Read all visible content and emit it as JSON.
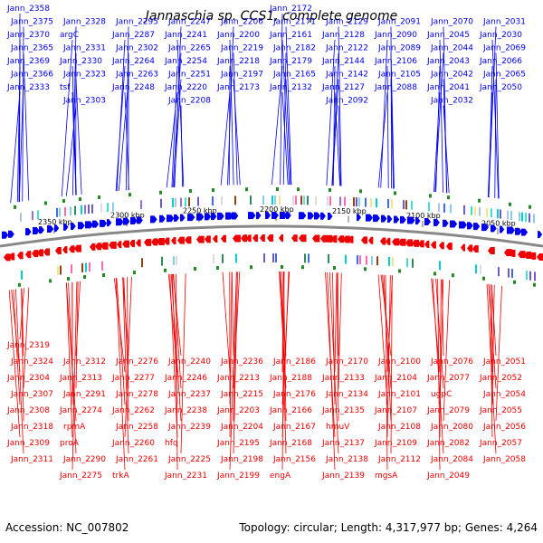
{
  "title": "Jannaschia sp. CCS1, complete genome",
  "footer": {
    "accession": "Accession: NC_007802",
    "summary": "Topology: circular; Length: 4,317,977 bp; Genes: 4,264"
  },
  "colors": {
    "forward": "#0000ee",
    "reverse": "#ee0000",
    "backbone": "#888888",
    "rna": "#228b22"
  },
  "scale_labels": [
    "2350 kbp",
    "2300 kbp",
    "2250 kbp",
    "2200 kbp",
    "2150 kbp",
    "2100 kbp",
    "2050 kbp"
  ],
  "top_labels": [
    "Jann_2358",
    "Jann_2375",
    "Jann_2370",
    "Jann_2365",
    "Jann_2369",
    "Jann_2366",
    "Jann_2333",
    "Jann_2328",
    "argC",
    "Jann_2331",
    "Jann_2330",
    "Jann_2323",
    "tsf",
    "Jann_2303",
    "Jann_2295",
    "Jann_2287",
    "Jann_2302",
    "Jann_2264",
    "Jann_2263",
    "Jann_2248",
    "Jann_2247",
    "Jann_2241",
    "Jann_2265",
    "Jann_2254",
    "Jann_2251",
    "Jann_2220",
    "Jann_2208",
    "Jann_2206",
    "Jann_2200",
    "Jann_2219",
    "Jann_2218",
    "Jann_2197",
    "Jann_2173",
    "Jann_2172",
    "Jann_2171",
    "Jann_2161",
    "Jann_2182",
    "Jann_2179",
    "Jann_2165",
    "Jann_2132",
    "Jann_2129",
    "Jann_2128",
    "Jann_2122",
    "Jann_2144",
    "Jann_2142",
    "Jann_2127",
    "Jann_2092",
    "Jann_2091",
    "Jann_2090",
    "Jann_2089",
    "Jann_2106",
    "Jann_2105",
    "Jann_2088",
    "Jann_2070",
    "Jann_2045",
    "Jann_2044",
    "Jann_2043",
    "Jann_2042",
    "Jann_2041",
    "Jann_2032",
    "Jann_2031",
    "Jann_2030",
    "Jann_2069",
    "Jann_2066",
    "Jann_2065",
    "Jann_2050"
  ],
  "bottom_labels": [
    "Jann_2319",
    "Jann_2324",
    "Jann_2304",
    "Jann_2307",
    "Jann_2308",
    "Jann_2318",
    "Jann_2309",
    "Jann_2311",
    "Jann_2312",
    "Jann_2313",
    "Jann_2291",
    "Jann_2274",
    "rpmA",
    "proA",
    "Jann_2290",
    "Jann_2275",
    "Jann_2276",
    "Jann_2277",
    "Jann_2278",
    "Jann_2262",
    "Jann_2258",
    "Jann_2260",
    "Jann_2261",
    "trkA",
    "Jann_2240",
    "Jann_2246",
    "Jann_2237",
    "Jann_2238",
    "Jann_2239",
    "hfq",
    "Jann_2225",
    "Jann_2231",
    "Jann_2236",
    "Jann_2213",
    "Jann_2215",
    "Jann_2203",
    "Jann_2204",
    "Jann_2195",
    "Jann_2198",
    "Jann_2199",
    "Jann_2186",
    "Jann_2188",
    "Jann_2176",
    "Jann_2166",
    "Jann_2167",
    "Jann_2168",
    "Jann_2156",
    "engA",
    "Jann_2170",
    "Jann_2133",
    "Jann_2134",
    "Jann_2135",
    "hmuV",
    "Jann_2137",
    "Jann_2138",
    "Jann_2139",
    "Jann_2100",
    "Jann_2104",
    "Jann_2101",
    "Jann_2107",
    "Jann_2108",
    "Jann_2109",
    "Jann_2112",
    "mgsA",
    "Jann_2076",
    "Jann_2077",
    "ugpC",
    "Jann_2079",
    "Jann_2080",
    "Jann_2082",
    "Jann_2084",
    "Jann_2049",
    "Jann_2051",
    "Jann_2052",
    "Jann_2054",
    "Jann_2055",
    "Jann_2056",
    "Jann_2057",
    "Jann_2058"
  ]
}
